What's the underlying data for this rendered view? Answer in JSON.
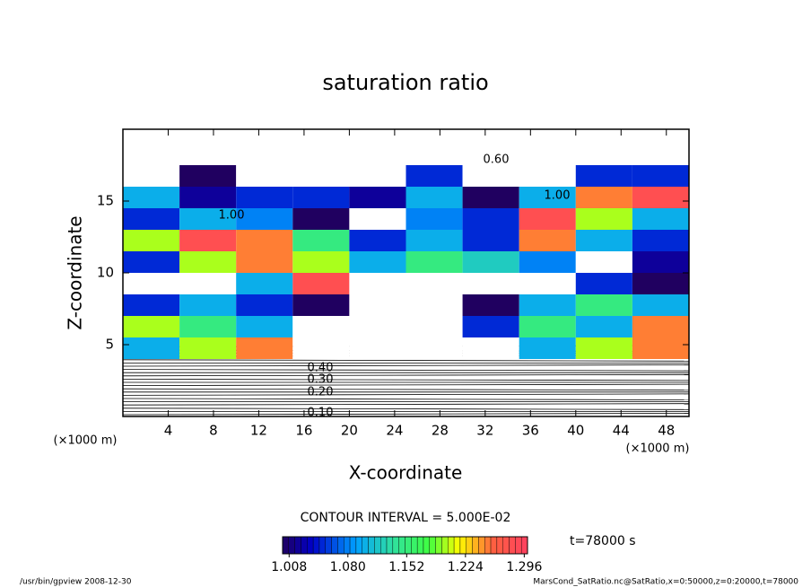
{
  "chart_data": {
    "type": "heatmap",
    "title": "saturation ratio",
    "x_label": "X-coordinate",
    "y_label": "Z-coordinate",
    "x_unit_left": "(×1000 m)",
    "x_unit_right": "(×1000 m)",
    "xlim": [
      0,
      50
    ],
    "ylim": [
      0,
      20
    ],
    "xticks": [
      4,
      8,
      12,
      16,
      20,
      24,
      28,
      32,
      36,
      40,
      44,
      48
    ],
    "yticks": [
      5,
      10,
      15
    ],
    "x": [
      2.5,
      7.5,
      12.5,
      17.5,
      22.5,
      27.5,
      32.5,
      37.5,
      42.5,
      47.5
    ],
    "y": [
      4.75,
      6.25,
      7.75,
      9.25,
      10.75,
      12.25,
      13.75,
      15.25,
      16.75,
      18.25
    ],
    "values": [
      [
        1.1,
        1.2,
        1.25,
        0.9,
        0.9,
        0.9,
        0.9,
        1.1,
        1.2,
        1.25
      ],
      [
        1.2,
        1.15,
        1.1,
        0.95,
        0.9,
        0.9,
        1.05,
        1.15,
        1.1,
        1.25
      ],
      [
        1.05,
        1.1,
        1.05,
        1.0,
        0.9,
        0.95,
        1.0,
        1.1,
        1.15,
        1.1
      ],
      [
        0.95,
        0.9,
        1.1,
        1.28,
        0.9,
        0.9,
        0.9,
        0.9,
        1.05,
        1.0
      ],
      [
        1.05,
        1.2,
        1.25,
        1.2,
        1.1,
        1.15,
        1.12,
        1.08,
        0.95,
        1.02
      ],
      [
        1.2,
        1.28,
        1.25,
        1.15,
        1.05,
        1.1,
        1.05,
        1.25,
        1.1,
        1.05
      ],
      [
        1.05,
        1.1,
        1.08,
        1.0,
        0.95,
        1.08,
        1.05,
        1.28,
        1.2,
        1.1
      ],
      [
        1.1,
        1.02,
        1.05,
        1.05,
        1.02,
        1.1,
        1.0,
        1.1,
        1.25,
        1.28
      ],
      [
        0.9,
        1.0,
        0.9,
        0.9,
        0.9,
        1.05,
        0.9,
        0.95,
        1.05,
        1.05
      ],
      [
        0.85,
        0.85,
        0.85,
        0.85,
        0.85,
        0.85,
        0.85,
        0.85,
        0.85,
        0.85
      ]
    ],
    "contour_labels": [
      "0.10",
      "0.20",
      "0.30",
      "0.40",
      "1.00",
      "1.00",
      "0.60"
    ],
    "contour_interval": "CONTOUR INTERVAL = 5.000E-02",
    "clim": [
      1.0,
      1.3
    ],
    "colorbar_ticks": [
      1.008,
      1.08,
      1.152,
      1.224,
      1.296
    ],
    "colorbar_tick_labels": [
      "1.008",
      "1.080",
      "1.152",
      "1.224",
      "1.296"
    ],
    "time_label": "t=78000 s",
    "footer_left": "/usr/bin/gpview   2008-12-30",
    "footer_right": "MarsCond_SatRatio.nc@SatRatio,x=0:50000,z=0:20000,t=78000"
  }
}
